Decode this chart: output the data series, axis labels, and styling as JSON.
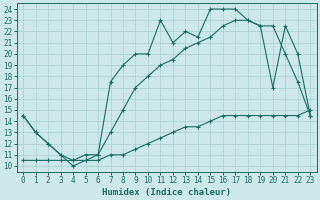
{
  "xlabel": "Humidex (Indice chaleur)",
  "background_color": "#cce8ea",
  "line_color": "#1a6b62",
  "grid_color": "#aacdd0",
  "xlim": [
    -0.5,
    23.5
  ],
  "ylim": [
    9.5,
    24.5
  ],
  "yticks": [
    10,
    11,
    12,
    13,
    14,
    15,
    16,
    17,
    18,
    19,
    20,
    21,
    22,
    23,
    24
  ],
  "xticks": [
    0,
    1,
    2,
    3,
    4,
    5,
    6,
    7,
    8,
    9,
    10,
    11,
    12,
    13,
    14,
    15,
    16,
    17,
    18,
    19,
    20,
    21,
    22,
    23
  ],
  "line1_x": [
    0,
    1,
    2,
    3,
    4,
    5,
    6,
    7,
    8,
    9,
    10,
    11,
    12,
    13,
    14,
    15,
    16,
    17,
    18,
    19,
    20,
    21,
    22,
    23
  ],
  "line1_y": [
    14.5,
    13.0,
    12.0,
    11.0,
    10.0,
    10.5,
    11.0,
    17.5,
    19.0,
    20.0,
    20.0,
    23.0,
    21.0,
    22.0,
    21.5,
    24.0,
    24.0,
    24.0,
    23.0,
    22.5,
    17.0,
    22.5,
    20.0,
    14.5
  ],
  "line2_x": [
    0,
    1,
    2,
    3,
    4,
    5,
    6,
    7,
    8,
    9,
    10,
    11,
    12,
    13,
    14,
    15,
    16,
    17,
    18,
    19,
    20,
    21,
    22,
    23
  ],
  "line2_y": [
    14.5,
    13.0,
    12.0,
    11.0,
    10.5,
    11.0,
    11.0,
    13.0,
    15.0,
    17.0,
    18.0,
    19.0,
    19.5,
    20.5,
    21.0,
    21.5,
    22.5,
    23.0,
    23.0,
    22.5,
    22.5,
    20.0,
    17.5,
    14.5
  ],
  "line3_x": [
    0,
    1,
    2,
    3,
    4,
    5,
    6,
    7,
    8,
    9,
    10,
    11,
    12,
    13,
    14,
    15,
    16,
    17,
    18,
    19,
    20,
    21,
    22,
    23
  ],
  "line3_y": [
    10.5,
    10.5,
    10.5,
    10.5,
    10.5,
    10.5,
    10.5,
    11.0,
    11.0,
    11.5,
    12.0,
    12.5,
    13.0,
    13.5,
    13.5,
    14.0,
    14.5,
    14.5,
    14.5,
    14.5,
    14.5,
    14.5,
    14.5,
    15.0
  ]
}
